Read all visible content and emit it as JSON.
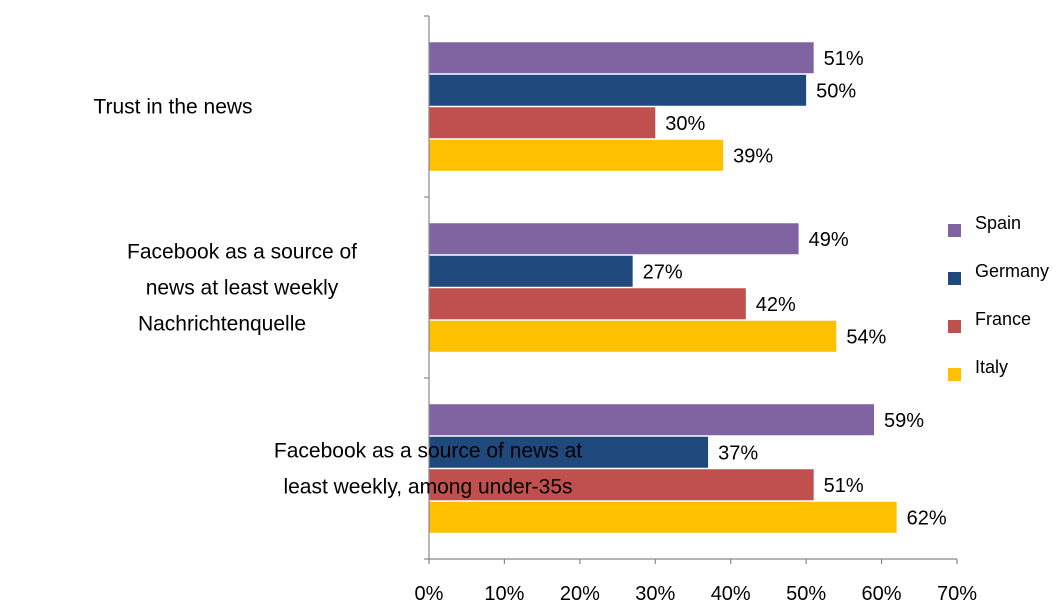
{
  "chart_data": {
    "type": "bar",
    "orientation": "horizontal",
    "categories": [
      [
        "Trust in the news"
      ],
      [
        "Facebook as a source of",
        "news at least weekly",
        "Nachrichtenquelle"
      ],
      [
        "Facebook as a source of news at",
        "least weekly, among under-35s"
      ]
    ],
    "series": [
      {
        "name": "Spain",
        "color": "#8064A2",
        "values": [
          51,
          49,
          59
        ]
      },
      {
        "name": "Germany",
        "color": "#1F497D",
        "values": [
          50,
          27,
          37
        ]
      },
      {
        "name": "France",
        "color": "#C0504D",
        "values": [
          30,
          42,
          51
        ]
      },
      {
        "name": "Italy",
        "color": "#FFC000",
        "values": [
          39,
          54,
          62
        ]
      }
    ],
    "value_suffix": "%",
    "xlim": [
      0,
      70
    ],
    "xticks": [
      "0%",
      "10%",
      "20%",
      "30%",
      "40%",
      "50%",
      "60%",
      "70%"
    ],
    "grid": false,
    "legend_position": "right"
  }
}
